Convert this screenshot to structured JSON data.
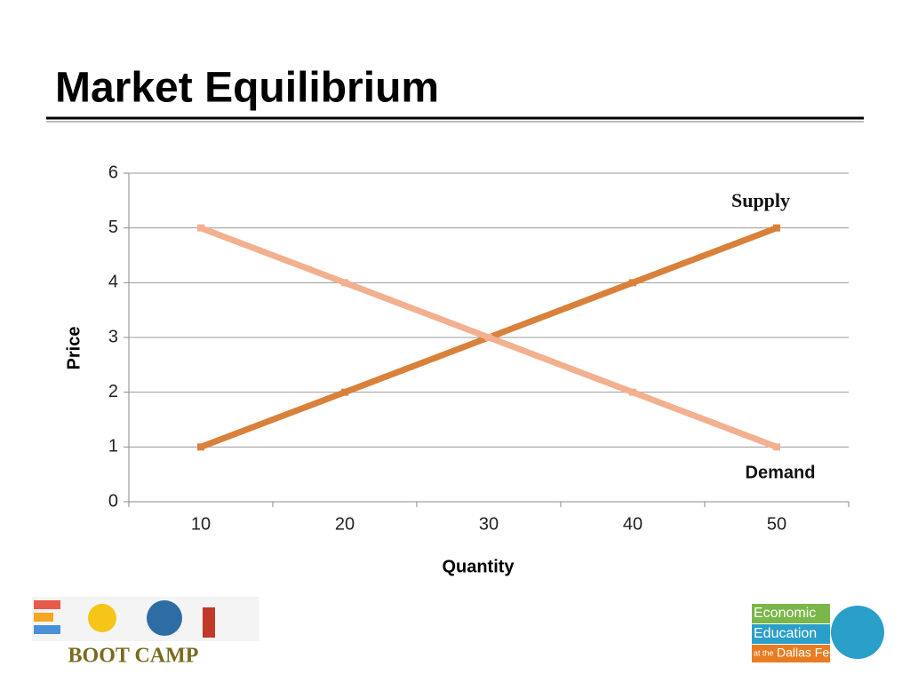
{
  "title": "Market Equilibrium",
  "chart_data": {
    "type": "line",
    "categories": [
      10,
      20,
      30,
      40,
      50
    ],
    "series": [
      {
        "name": "Supply",
        "color": "#d9813b",
        "values": [
          1,
          2,
          3,
          4,
          5
        ]
      },
      {
        "name": "Demand",
        "color": "#f2b08f",
        "values": [
          5,
          4,
          3,
          2,
          1
        ]
      }
    ],
    "xlabel": "Quantity",
    "ylabel": "Price",
    "ylim": [
      0,
      6
    ],
    "yticks": [
      0,
      1,
      2,
      3,
      4,
      5,
      6
    ],
    "grid": true
  },
  "logos": {
    "left": "BOOT CAMP",
    "right": [
      "Economic",
      "Education",
      "at the",
      "Dallas Fed"
    ]
  }
}
